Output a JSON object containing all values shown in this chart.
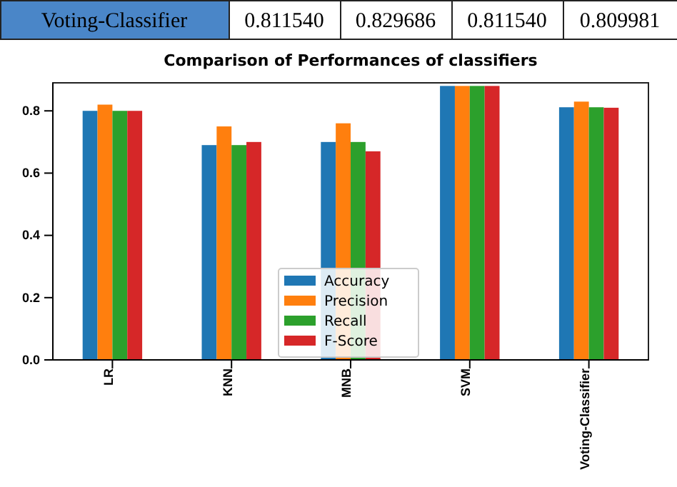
{
  "chart_data": {
    "type": "bar",
    "title": "Comparison of Performances of classifiers",
    "annotations": [
      "Voting-Classifier",
      "0.811540",
      "0.829686",
      "0.811540",
      "0.809981"
    ],
    "categories": [
      "LR",
      "KNN",
      "MNB",
      "SVM",
      "Voting-Classifier"
    ],
    "series": [
      {
        "name": "Accuracy",
        "color": "#1f77b4",
        "values": [
          0.8,
          0.69,
          0.7,
          0.88,
          0.81154
        ]
      },
      {
        "name": "Precision",
        "color": "#ff7f0e",
        "values": [
          0.82,
          0.75,
          0.76,
          0.88,
          0.829686
        ]
      },
      {
        "name": "Recall",
        "color": "#2ca02c",
        "values": [
          0.8,
          0.69,
          0.7,
          0.88,
          0.81154
        ]
      },
      {
        "name": "F-Score",
        "color": "#d62728",
        "values": [
          0.8,
          0.7,
          0.67,
          0.88,
          0.809981
        ]
      }
    ],
    "ylim": [
      0,
      0.89
    ],
    "yticks": [
      {
        "value": 0,
        "label": "0.0"
      },
      {
        "value": 0.2,
        "label": "0.2"
      },
      {
        "value": 0.4,
        "label": "0.4"
      },
      {
        "value": 0.6,
        "label": "0.6"
      },
      {
        "value": 0.8,
        "label": "0.8"
      }
    ],
    "legend": "bottom"
  }
}
